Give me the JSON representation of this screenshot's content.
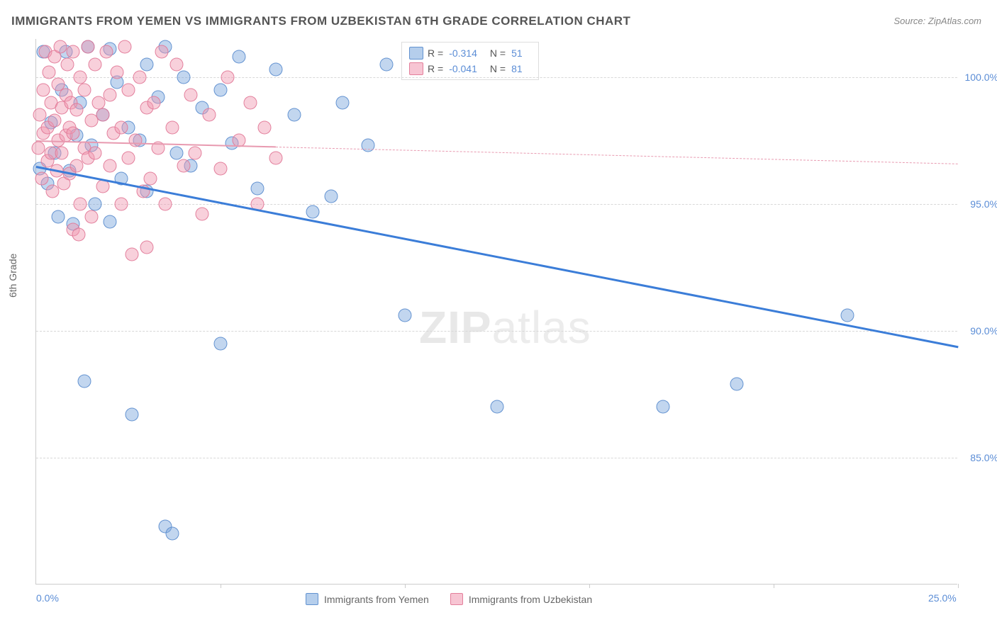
{
  "title": "IMMIGRANTS FROM YEMEN VS IMMIGRANTS FROM UZBEKISTAN 6TH GRADE CORRELATION CHART",
  "source": "Source: ZipAtlas.com",
  "watermark_bold": "ZIP",
  "watermark_thin": "atlas",
  "chart": {
    "type": "scatter",
    "ylabel": "6th Grade",
    "xlim": [
      0,
      25
    ],
    "ylim": [
      80,
      101.5
    ],
    "yticks": [
      85.0,
      90.0,
      95.0,
      100.0
    ],
    "ytick_labels": [
      "85.0%",
      "90.0%",
      "95.0%",
      "100.0%"
    ],
    "xticks": [
      0,
      5,
      10,
      15,
      20,
      25
    ],
    "xtick_labels_shown": {
      "0": "0.0%",
      "25": "25.0%"
    },
    "grid_color": "#d8d8d8",
    "background_color": "#ffffff",
    "series": [
      {
        "name": "Immigrants from Yemen",
        "color_fill": "rgba(120,165,220,0.45)",
        "color_stroke": "rgba(90,140,205,0.9)",
        "marker_radius_px": 9,
        "R": "-0.314",
        "N": "51",
        "regression": {
          "x1": 0,
          "y1": 96.5,
          "x2": 25,
          "y2": 89.4,
          "style": "solid",
          "color": "#3b7dd8",
          "width": 2.5
        },
        "points": [
          [
            0.1,
            96.4
          ],
          [
            0.3,
            95.8
          ],
          [
            0.4,
            98.2
          ],
          [
            0.5,
            97.0
          ],
          [
            0.6,
            94.5
          ],
          [
            0.7,
            99.5
          ],
          [
            0.8,
            101.0
          ],
          [
            0.9,
            96.3
          ],
          [
            1.0,
            94.2
          ],
          [
            1.1,
            97.7
          ],
          [
            1.2,
            99.0
          ],
          [
            1.3,
            88.0
          ],
          [
            1.5,
            97.3
          ],
          [
            1.6,
            95.0
          ],
          [
            1.8,
            98.5
          ],
          [
            2.0,
            101.1
          ],
          [
            2.0,
            94.3
          ],
          [
            2.2,
            99.8
          ],
          [
            2.3,
            96.0
          ],
          [
            2.5,
            98.0
          ],
          [
            2.6,
            86.7
          ],
          [
            2.8,
            97.5
          ],
          [
            3.0,
            100.5
          ],
          [
            3.0,
            95.5
          ],
          [
            3.3,
            99.2
          ],
          [
            3.5,
            101.2
          ],
          [
            3.5,
            82.3
          ],
          [
            3.7,
            82.0
          ],
          [
            3.8,
            97.0
          ],
          [
            4.0,
            100.0
          ],
          [
            4.2,
            96.5
          ],
          [
            4.5,
            98.8
          ],
          [
            5.0,
            99.5
          ],
          [
            5.0,
            89.5
          ],
          [
            5.3,
            97.4
          ],
          [
            5.5,
            100.8
          ],
          [
            6.0,
            95.6
          ],
          [
            6.5,
            100.3
          ],
          [
            7.0,
            98.5
          ],
          [
            7.5,
            94.7
          ],
          [
            8.0,
            95.3
          ],
          [
            8.3,
            99.0
          ],
          [
            9.0,
            97.3
          ],
          [
            9.5,
            100.5
          ],
          [
            10.0,
            90.6
          ],
          [
            12.5,
            87.0
          ],
          [
            17.0,
            87.0
          ],
          [
            19.0,
            87.9
          ],
          [
            22.0,
            90.6
          ],
          [
            0.2,
            101.0
          ],
          [
            1.4,
            101.2
          ]
        ]
      },
      {
        "name": "Immigrants from Uzbekistan",
        "color_fill": "rgba(240,150,175,0.45)",
        "color_stroke": "rgba(225,120,150,0.9)",
        "marker_radius_px": 9,
        "R": "-0.041",
        "N": "81",
        "regression": {
          "x1": 0,
          "y1": 97.5,
          "x2": 25,
          "y2": 96.6,
          "style": "dashed",
          "color": "#e89ab0",
          "width": 1.5,
          "solid_until_x": 6.5
        },
        "points": [
          [
            0.05,
            97.2
          ],
          [
            0.1,
            98.5
          ],
          [
            0.15,
            96.0
          ],
          [
            0.2,
            99.5
          ],
          [
            0.2,
            97.8
          ],
          [
            0.25,
            101.0
          ],
          [
            0.3,
            98.0
          ],
          [
            0.3,
            96.7
          ],
          [
            0.35,
            100.2
          ],
          [
            0.4,
            97.0
          ],
          [
            0.4,
            99.0
          ],
          [
            0.45,
            95.5
          ],
          [
            0.5,
            98.3
          ],
          [
            0.5,
            100.8
          ],
          [
            0.55,
            96.3
          ],
          [
            0.6,
            97.5
          ],
          [
            0.6,
            99.7
          ],
          [
            0.65,
            101.2
          ],
          [
            0.7,
            97.0
          ],
          [
            0.7,
            98.8
          ],
          [
            0.75,
            95.8
          ],
          [
            0.8,
            99.3
          ],
          [
            0.8,
            97.7
          ],
          [
            0.85,
            100.5
          ],
          [
            0.9,
            96.2
          ],
          [
            0.9,
            98.0
          ],
          [
            0.95,
            99.0
          ],
          [
            1.0,
            94.0
          ],
          [
            1.0,
            97.8
          ],
          [
            1.0,
            101.0
          ],
          [
            1.1,
            96.5
          ],
          [
            1.1,
            98.7
          ],
          [
            1.2,
            100.0
          ],
          [
            1.2,
            95.0
          ],
          [
            1.3,
            97.2
          ],
          [
            1.3,
            99.5
          ],
          [
            1.4,
            101.2
          ],
          [
            1.4,
            96.8
          ],
          [
            1.5,
            98.3
          ],
          [
            1.5,
            94.5
          ],
          [
            1.6,
            100.5
          ],
          [
            1.6,
            97.0
          ],
          [
            1.7,
            99.0
          ],
          [
            1.8,
            95.7
          ],
          [
            1.8,
            98.5
          ],
          [
            1.9,
            101.0
          ],
          [
            2.0,
            96.5
          ],
          [
            2.0,
            99.3
          ],
          [
            2.1,
            97.8
          ],
          [
            2.2,
            100.2
          ],
          [
            2.3,
            95.0
          ],
          [
            2.3,
            98.0
          ],
          [
            2.4,
            101.2
          ],
          [
            2.5,
            96.8
          ],
          [
            2.5,
            99.5
          ],
          [
            2.6,
            93.0
          ],
          [
            2.7,
            97.5
          ],
          [
            2.8,
            100.0
          ],
          [
            2.9,
            95.5
          ],
          [
            3.0,
            98.8
          ],
          [
            3.0,
            93.3
          ],
          [
            3.1,
            96.0
          ],
          [
            3.2,
            99.0
          ],
          [
            3.3,
            97.2
          ],
          [
            3.4,
            101.0
          ],
          [
            3.5,
            95.0
          ],
          [
            3.7,
            98.0
          ],
          [
            3.8,
            100.5
          ],
          [
            4.0,
            96.5
          ],
          [
            4.2,
            99.3
          ],
          [
            4.3,
            97.0
          ],
          [
            4.5,
            94.6
          ],
          [
            4.7,
            98.5
          ],
          [
            5.0,
            96.4
          ],
          [
            5.2,
            100.0
          ],
          [
            5.5,
            97.5
          ],
          [
            5.8,
            99.0
          ],
          [
            6.0,
            95.0
          ],
          [
            6.2,
            98.0
          ],
          [
            6.5,
            96.8
          ],
          [
            1.15,
            93.8
          ]
        ]
      }
    ],
    "legend_top": {
      "R_label": "R =",
      "N_label": "N ="
    },
    "legend_bottom": [
      "Immigrants from Yemen",
      "Immigrants from Uzbekistan"
    ]
  }
}
